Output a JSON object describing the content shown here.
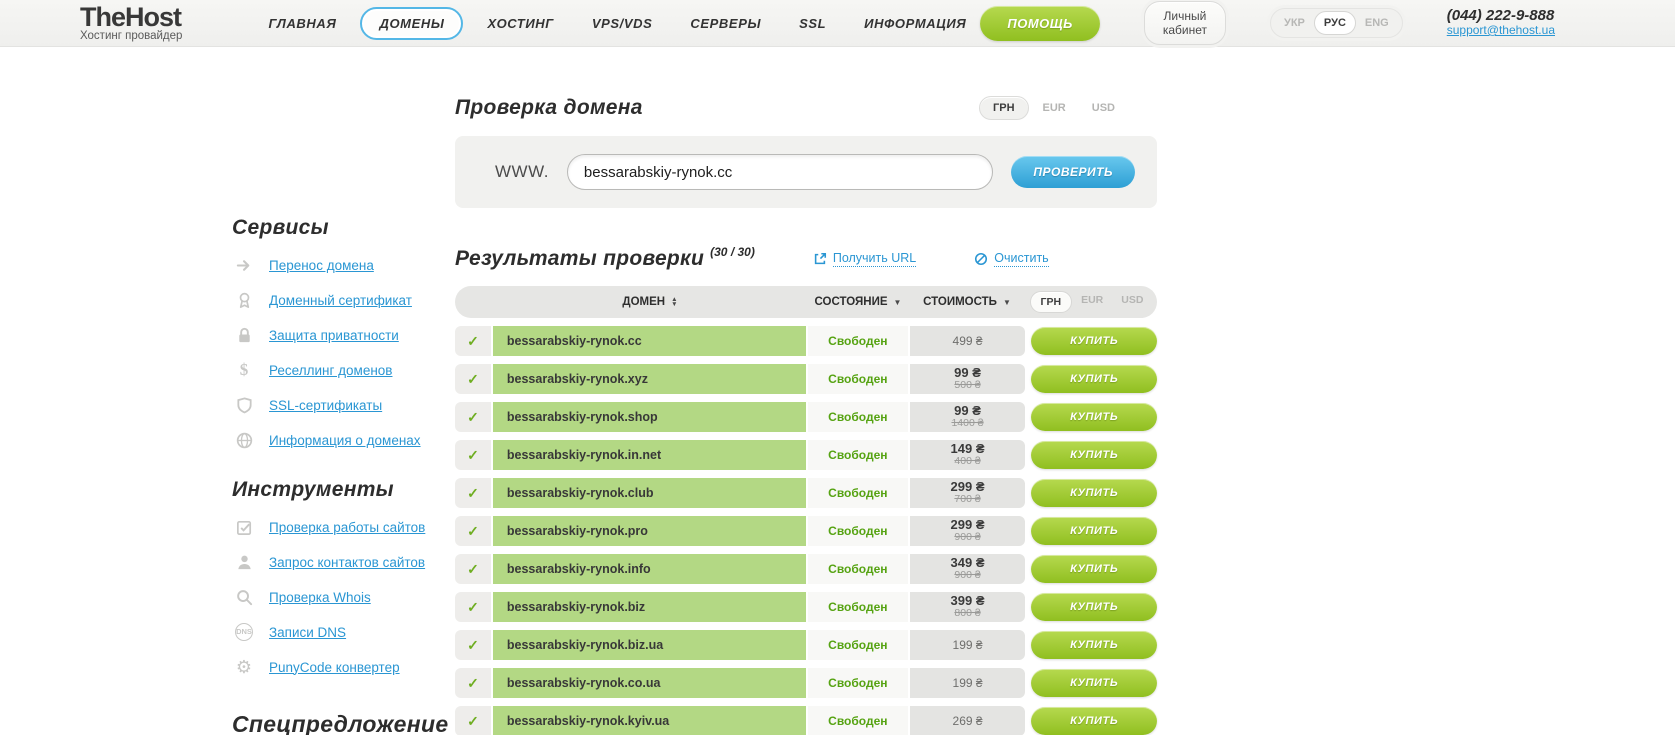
{
  "topbar": {
    "logo_title": "TheHost",
    "logo_subtitle": "Хостинг провайдер",
    "nav": [
      {
        "label": "ГЛАВНАЯ",
        "active": false
      },
      {
        "label": "ДОМЕНЫ",
        "active": true
      },
      {
        "label": "ХОСТИНГ",
        "active": false
      },
      {
        "label": "VPS/VDS",
        "active": false
      },
      {
        "label": "СЕРВЕРЫ",
        "active": false
      },
      {
        "label": "SSL",
        "active": false
      },
      {
        "label": "ИНФОРМАЦИЯ",
        "active": false
      }
    ],
    "help_label": "ПОМОЩЬ",
    "cabinet_label": "Личный кабинет",
    "languages": [
      "УКР",
      "РУС",
      "ENG"
    ],
    "active_language": "РУС",
    "phone": "(044) 222-9-888",
    "email": "support@thehost.ua"
  },
  "sidebar": {
    "sections": [
      {
        "title": "Сервисы",
        "items": [
          {
            "icon": "arrow-right",
            "label": "Перенос домена"
          },
          {
            "icon": "award",
            "label": "Доменный сертификат"
          },
          {
            "icon": "lock",
            "label": "Защита приватности"
          },
          {
            "icon": "dollar",
            "label": "Реселлинг доменов"
          },
          {
            "icon": "shield",
            "label": "SSL-сертификаты"
          },
          {
            "icon": "globe",
            "label": "Информация о доменах"
          }
        ]
      },
      {
        "title": "Инструменты",
        "items": [
          {
            "icon": "checkbox",
            "label": "Проверка работы сайтов"
          },
          {
            "icon": "person",
            "label": "Запрос контактов сайтов"
          },
          {
            "icon": "magnifier",
            "label": "Проверка Whois"
          },
          {
            "icon": "dns",
            "label": "Записи DNS"
          },
          {
            "icon": "gear",
            "label": "PunyCode конвертер"
          }
        ]
      }
    ],
    "special_title": "Спецпредложение"
  },
  "content": {
    "page_title": "Проверка домена",
    "currency": {
      "options": [
        "ГРН",
        "EUR",
        "USD"
      ],
      "active": "ГРН"
    },
    "form": {
      "www_label": "WWW.",
      "input_value": "bessarabskiy-rynok.cc",
      "submit_label": "ПРОВЕРИТЬ"
    },
    "results": {
      "title": "Результаты проверки",
      "count": "(30 / 30)",
      "get_url_label": "Получить URL",
      "clear_label": "Очистить",
      "columns": {
        "domain": "ДОМЕН",
        "status": "СОСТОЯНИЕ",
        "price": "СТОИМОСТЬ"
      },
      "check_glyph": "✓",
      "buy_label": "КУПИТЬ",
      "rows": [
        {
          "domain": "bessarabskiy-rynok.cc",
          "status": "Свободен",
          "price": "499 ₴",
          "old_price": ""
        },
        {
          "domain": "bessarabskiy-rynok.xyz",
          "status": "Свободен",
          "price": "99 ₴",
          "old_price": "500 ₴"
        },
        {
          "domain": "bessarabskiy-rynok.shop",
          "status": "Свободен",
          "price": "99 ₴",
          "old_price": "1400 ₴"
        },
        {
          "domain": "bessarabskiy-rynok.in.net",
          "status": "Свободен",
          "price": "149 ₴",
          "old_price": "400 ₴"
        },
        {
          "domain": "bessarabskiy-rynok.club",
          "status": "Свободен",
          "price": "299 ₴",
          "old_price": "700 ₴"
        },
        {
          "domain": "bessarabskiy-rynok.pro",
          "status": "Свободен",
          "price": "299 ₴",
          "old_price": "900 ₴"
        },
        {
          "domain": "bessarabskiy-rynok.info",
          "status": "Свободен",
          "price": "349 ₴",
          "old_price": "900 ₴"
        },
        {
          "domain": "bessarabskiy-rynok.biz",
          "status": "Свободен",
          "price": "399 ₴",
          "old_price": "800 ₴"
        },
        {
          "domain": "bessarabskiy-rynok.biz.ua",
          "status": "Свободен",
          "price": "199 ₴",
          "old_price": ""
        },
        {
          "domain": "bessarabskiy-rynok.co.ua",
          "status": "Свободен",
          "price": "199 ₴",
          "old_price": ""
        },
        {
          "domain": "bessarabskiy-rynok.kyiv.ua",
          "status": "Свободен",
          "price": "269 ₴",
          "old_price": ""
        }
      ]
    }
  },
  "colors": {
    "accent_green": "#96c11f",
    "accent_blue": "#3fb0e0",
    "link_blue": "#2a96d3",
    "domain_cell_green": "#b3d884",
    "status_green": "#56a312"
  }
}
